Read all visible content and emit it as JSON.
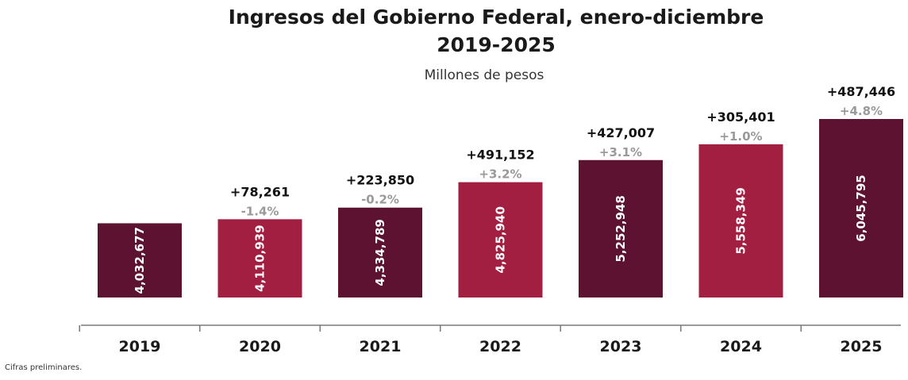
{
  "chart_data": {
    "type": "bar",
    "title_line1": "Ingresos del Gobierno Federal, enero-diciembre",
    "title_line2": "2019-2025",
    "subtitle": "Millones de pesos",
    "categories": [
      "2019",
      "2020",
      "2021",
      "2022",
      "2023",
      "2024",
      "2025"
    ],
    "values": [
      4032677,
      4110939,
      4334789,
      4825940,
      5252948,
      5558349,
      6045795
    ],
    "value_labels": [
      "4,032,677",
      "4,110,939",
      "4,334,789",
      "4,825,940",
      "5,252,948",
      "5,558,349",
      "6,045,795"
    ],
    "diff_labels": [
      "",
      "+78,261",
      "+223,850",
      "+491,152",
      "+427,007",
      "+305,401",
      "+487,446"
    ],
    "pct_labels": [
      "",
      "-1.4%",
      "-0.2%",
      "+3.2%",
      "+3.1%",
      "+1.0%",
      "+4.8%"
    ],
    "colors": [
      "#5c1230",
      "#a31f42",
      "#5c1230",
      "#a31f42",
      "#5c1230",
      "#a31f42",
      "#5c1230"
    ],
    "ylim": [
      2600000,
      6250000
    ],
    "grid": false,
    "legend": "none"
  },
  "footnote": "Cifras preliminares."
}
